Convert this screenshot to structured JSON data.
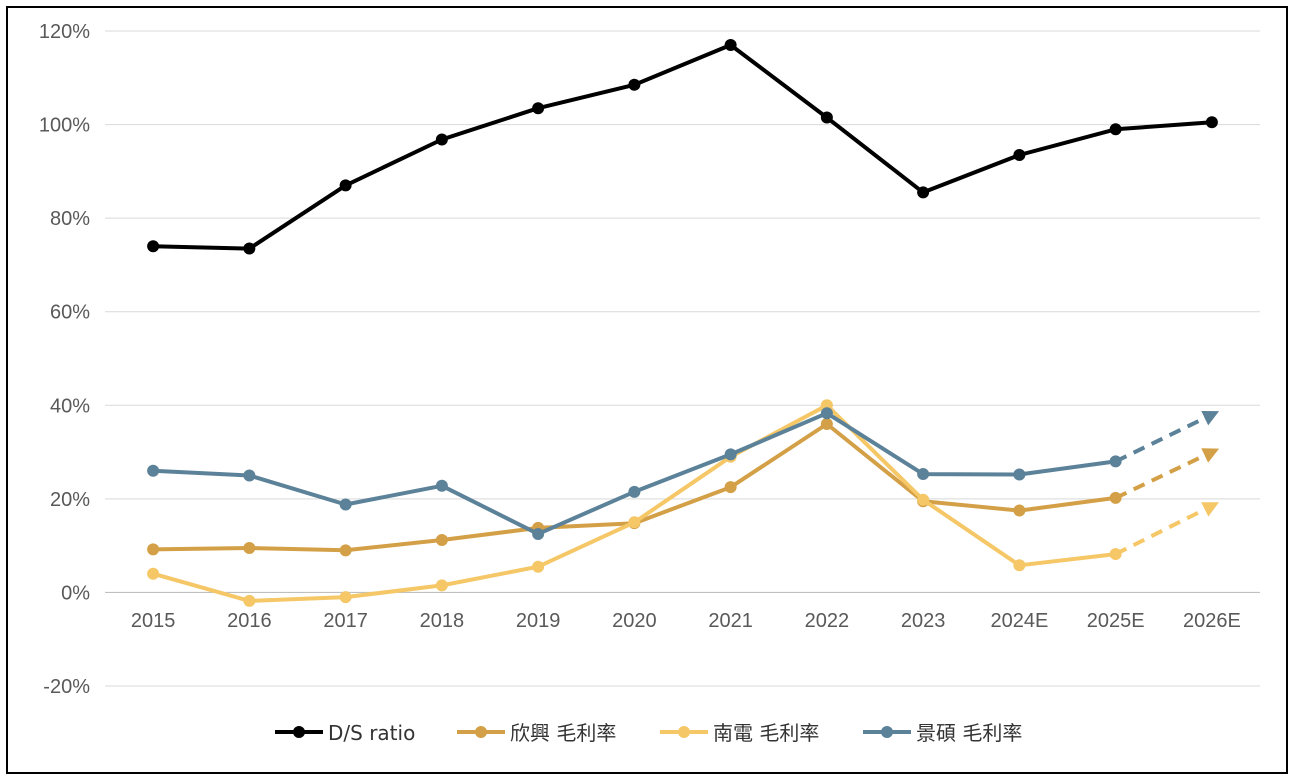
{
  "chart_data": {
    "type": "line",
    "categories": [
      "2015",
      "2016",
      "2017",
      "2018",
      "2019",
      "2020",
      "2021",
      "2022",
      "2023",
      "2024E",
      "2025E",
      "2026E"
    ],
    "ylim": [
      -20,
      120
    ],
    "yticks": [
      -20,
      0,
      20,
      40,
      60,
      80,
      100,
      120
    ],
    "ytick_labels": [
      "-20%",
      "0%",
      "20%",
      "40%",
      "60%",
      "80%",
      "100%",
      "120%"
    ],
    "grid": true,
    "legend_position": "bottom",
    "projection_note": "last segment (2025E→2026E) drawn dashed with arrow for the three margin series",
    "series": [
      {
        "name": "D/S ratio",
        "color": "#000000",
        "values": [
          74,
          73.5,
          87,
          96.8,
          103.5,
          108.5,
          117,
          101.5,
          85.5,
          93.5,
          99,
          100.5
        ]
      },
      {
        "name": "欣興 毛利率",
        "color": "#D4A047",
        "values": [
          9.2,
          9.5,
          9,
          11.2,
          13.8,
          14.8,
          22.5,
          36,
          19.5,
          17.5,
          20.2,
          30
        ]
      },
      {
        "name": "南電 毛利率",
        "color": "#F5C767",
        "values": [
          4,
          -1.8,
          -1,
          1.5,
          5.5,
          15,
          29,
          40,
          19.8,
          5.8,
          8.2,
          18.5
        ]
      },
      {
        "name": "景碩 毛利率",
        "color": "#5B8299",
        "values": [
          26,
          25,
          18.8,
          22.8,
          12.5,
          21.5,
          29.5,
          38.3,
          25.3,
          25.2,
          28,
          38
        ]
      }
    ]
  }
}
